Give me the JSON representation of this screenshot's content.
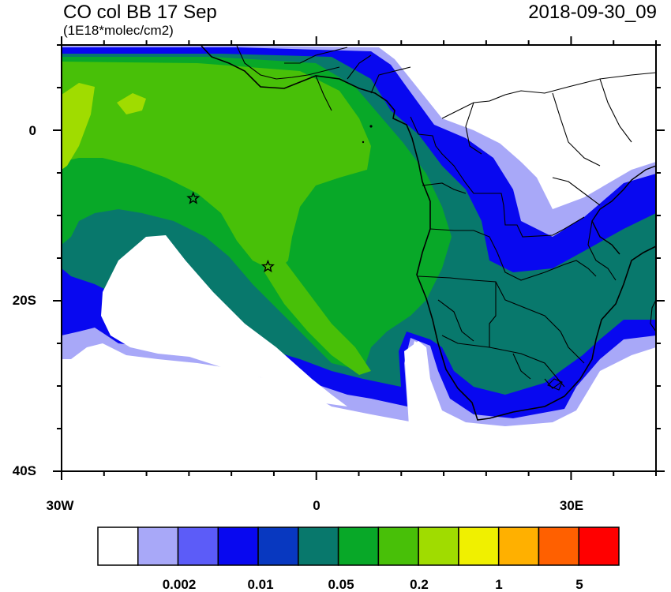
{
  "header": {
    "title_left": "CO col BB 17 Sep",
    "units": "(1E18*molec/cm2)",
    "title_right": "2018-09-30_09"
  },
  "map": {
    "lat_range": [
      -40,
      10
    ],
    "lon_range": [
      -30,
      40
    ],
    "lat_labels": [
      "0",
      "20S",
      "40S"
    ],
    "lon_labels": [
      "30W",
      "0",
      "30E"
    ],
    "markers": [
      {
        "name": "star",
        "lon": -14.5,
        "lat": -8
      },
      {
        "name": "star",
        "lon": -5.7,
        "lat": -16
      }
    ]
  },
  "colorbar": {
    "colors": [
      "#ffffff",
      "#a8a8f8",
      "#5c5cf8",
      "#0808f0",
      "#0838c0",
      "#08786c",
      "#08a828",
      "#48c008",
      "#a0dc00",
      "#f0f000",
      "#ffb000",
      "#ff6000",
      "#ff0000"
    ],
    "tick_labels": [
      "0.002",
      "0.01",
      "0.05",
      "0.2",
      "1",
      "5"
    ]
  }
}
